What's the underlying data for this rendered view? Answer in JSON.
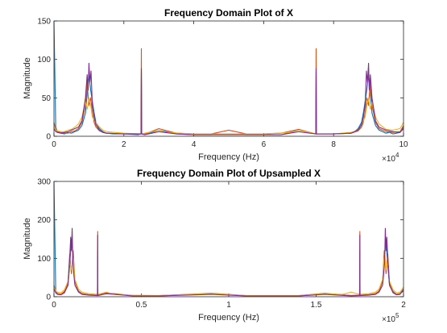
{
  "figure": {
    "background": "#ffffff",
    "series_colors": [
      "#0072BD",
      "#D95319",
      "#EDB120",
      "#7E2F8E"
    ]
  },
  "chart_data": [
    {
      "type": "line",
      "title": "Frequency Domain Plot of X",
      "xlabel": "Frequency (Hz)",
      "ylabel": "Magnitude",
      "xlim": [
        0,
        100000
      ],
      "ylim": [
        0,
        150
      ],
      "x_ticks": [
        0,
        20000,
        40000,
        60000,
        80000,
        100000
      ],
      "x_tick_labels": [
        "0",
        "2",
        "4",
        "6",
        "8",
        "10"
      ],
      "x_exponent_base": "×10",
      "x_exponent_power": "4",
      "y_ticks": [
        0,
        50,
        100,
        150
      ],
      "y_tick_labels": [
        "0",
        "50",
        "100",
        "150"
      ],
      "grid": false,
      "series": [
        {
          "color": "#0072BD",
          "x": [
            0,
            500,
            1000,
            2000,
            3000,
            4000,
            5000,
            6000,
            7000,
            8000,
            9000,
            9500,
            10000,
            10500,
            11000,
            11500,
            12000,
            13000,
            14000,
            15000,
            17000,
            20000,
            24000,
            24900,
            25000,
            25100,
            26000,
            30000,
            35000,
            40000,
            45000,
            50000,
            55000,
            60000,
            65000,
            70000,
            74900,
            75000,
            75100,
            80000,
            85000,
            86000,
            87000,
            88000,
            88500,
            89000,
            89500,
            90000,
            90500,
            91000,
            92000,
            93000,
            94000,
            95000,
            96000,
            97000,
            98000,
            99000,
            100000
          ],
          "y": [
            150,
            12,
            5,
            4,
            3,
            5,
            4,
            6,
            8,
            14,
            30,
            55,
            80,
            60,
            45,
            30,
            18,
            10,
            6,
            4,
            3,
            3,
            2,
            3,
            84,
            3,
            2,
            8,
            3,
            2,
            2,
            3,
            2,
            2,
            2,
            8,
            3,
            84,
            3,
            3,
            4,
            6,
            10,
            18,
            30,
            45,
            60,
            80,
            55,
            30,
            14,
            8,
            6,
            4,
            5,
            3,
            4,
            5,
            12
          ]
        },
        {
          "color": "#D95319",
          "x": [
            0,
            500,
            1000,
            2000,
            3000,
            4000,
            5000,
            6000,
            7000,
            8000,
            9000,
            9500,
            10000,
            10500,
            11000,
            11500,
            12000,
            13000,
            14000,
            15000,
            20000,
            24900,
            25000,
            25100,
            26000,
            30000,
            35000,
            40000,
            45000,
            50000,
            55000,
            60000,
            65000,
            70000,
            74900,
            75000,
            75100,
            80000,
            85000,
            87000,
            88000,
            88500,
            89000,
            89500,
            90000,
            90500,
            91000,
            92000,
            93000,
            95000,
            97000,
            99000,
            100000
          ],
          "y": [
            18,
            8,
            6,
            5,
            4,
            4,
            6,
            7,
            10,
            18,
            40,
            70,
            40,
            50,
            30,
            18,
            12,
            7,
            5,
            4,
            3,
            3,
            114,
            3,
            3,
            10,
            4,
            3,
            3,
            8,
            3,
            3,
            4,
            9,
            3,
            114,
            3,
            3,
            4,
            7,
            12,
            18,
            30,
            50,
            40,
            70,
            40,
            18,
            10,
            6,
            5,
            6,
            14
          ]
        },
        {
          "color": "#EDB120",
          "x": [
            0,
            500,
            1000,
            2000,
            3000,
            4000,
            5000,
            6000,
            7000,
            8000,
            9000,
            9500,
            10000,
            10500,
            11000,
            12000,
            13000,
            14000,
            15000,
            20000,
            25000,
            28000,
            30000,
            32000,
            40000,
            50000,
            60000,
            68000,
            70000,
            72000,
            75000,
            80000,
            85000,
            87000,
            88000,
            89000,
            89500,
            90000,
            90500,
            91000,
            92000,
            93000,
            95000,
            97000,
            99000,
            100000
          ],
          "y": [
            14,
            8,
            7,
            6,
            6,
            8,
            9,
            12,
            16,
            25,
            45,
            35,
            50,
            40,
            25,
            18,
            12,
            8,
            6,
            4,
            3,
            6,
            8,
            5,
            3,
            3,
            3,
            5,
            8,
            6,
            3,
            3,
            5,
            8,
            15,
            25,
            40,
            50,
            35,
            45,
            25,
            16,
            9,
            8,
            10,
            18
          ]
        },
        {
          "color": "#7E2F8E",
          "x": [
            0,
            500,
            1000,
            2000,
            3000,
            4000,
            5000,
            6000,
            7000,
            8000,
            9000,
            9500,
            9800,
            10000,
            10300,
            10600,
            11000,
            11500,
            12000,
            13000,
            14000,
            15000,
            20000,
            24900,
            25000,
            25100,
            26000,
            30000,
            35000,
            40000,
            45000,
            50000,
            55000,
            60000,
            65000,
            70000,
            74900,
            75000,
            75100,
            80000,
            85000,
            87000,
            88000,
            88500,
            89000,
            89400,
            89700,
            90000,
            90200,
            90500,
            91000,
            92000,
            93000,
            95000,
            97000,
            99000,
            100000
          ],
          "y": [
            10,
            6,
            5,
            4,
            5,
            6,
            8,
            10,
            12,
            20,
            50,
            80,
            60,
            95,
            70,
            85,
            40,
            25,
            15,
            8,
            5,
            4,
            3,
            3,
            88,
            3,
            2,
            6,
            3,
            2,
            2,
            2,
            2,
            2,
            2,
            6,
            3,
            88,
            3,
            3,
            4,
            8,
            15,
            25,
            40,
            85,
            70,
            95,
            60,
            80,
            50,
            20,
            12,
            8,
            6,
            5,
            10
          ]
        }
      ]
    },
    {
      "type": "line",
      "title": "Frequency Domain Plot of Upsampled X",
      "xlabel": "Frequency (Hz)",
      "ylabel": "Magnitude",
      "xlim": [
        0,
        200000
      ],
      "ylim": [
        0,
        300
      ],
      "x_ticks": [
        0,
        50000,
        100000,
        150000,
        200000
      ],
      "x_tick_labels": [
        "0",
        "0.5",
        "1",
        "1.5",
        "2"
      ],
      "x_exponent_base": "×10",
      "x_exponent_power": "5",
      "y_ticks": [
        0,
        100,
        200,
        300
      ],
      "y_tick_labels": [
        "0",
        "100",
        "200",
        "300"
      ],
      "grid": false,
      "series": [
        {
          "color": "#0072BD",
          "x": [
            0,
            1000,
            2000,
            4000,
            6000,
            8000,
            9000,
            10000,
            11000,
            12000,
            14000,
            16000,
            20000,
            24900,
            25000,
            25100,
            30000,
            45000,
            60000,
            90000,
            110000,
            140000,
            155000,
            170000,
            174900,
            175000,
            175100,
            180000,
            184000,
            186000,
            188000,
            189000,
            190000,
            191000,
            192000,
            194000,
            196000,
            198000,
            200000
          ],
          "y": [
            300,
            15,
            8,
            6,
            12,
            30,
            80,
            150,
            100,
            40,
            15,
            8,
            5,
            4,
            120,
            4,
            8,
            3,
            2,
            8,
            2,
            2,
            8,
            3,
            4,
            120,
            4,
            5,
            8,
            15,
            40,
            100,
            150,
            80,
            30,
            12,
            6,
            8,
            15
          ]
        },
        {
          "color": "#D95319",
          "x": [
            0,
            1000,
            2000,
            4000,
            6000,
            8000,
            9000,
            10000,
            11000,
            12000,
            14000,
            16000,
            20000,
            24900,
            25000,
            25100,
            30000,
            45000,
            60000,
            90000,
            110000,
            140000,
            155000,
            170000,
            174900,
            175000,
            175100,
            180000,
            184000,
            186000,
            188000,
            189000,
            190000,
            191000,
            192000,
            194000,
            196000,
            198000,
            200000
          ],
          "y": [
            30,
            12,
            8,
            6,
            14,
            35,
            110,
            60,
            120,
            40,
            15,
            8,
            5,
            4,
            170,
            4,
            10,
            3,
            3,
            9,
            3,
            3,
            9,
            3,
            4,
            170,
            4,
            5,
            8,
            15,
            40,
            120,
            60,
            110,
            35,
            14,
            6,
            8,
            20
          ]
        },
        {
          "color": "#EDB120",
          "x": [
            0,
            1000,
            2000,
            4000,
            6000,
            8000,
            9000,
            10000,
            11000,
            12000,
            14000,
            16000,
            20000,
            25000,
            30000,
            35000,
            45000,
            60000,
            90000,
            110000,
            140000,
            155000,
            165000,
            170000,
            175000,
            180000,
            184000,
            186000,
            188000,
            189000,
            190000,
            191000,
            192000,
            194000,
            196000,
            198000,
            200000
          ],
          "y": [
            25,
            15,
            12,
            10,
            18,
            40,
            90,
            70,
            100,
            45,
            20,
            12,
            8,
            6,
            12,
            6,
            4,
            3,
            8,
            3,
            3,
            8,
            6,
            12,
            6,
            8,
            12,
            20,
            45,
            100,
            70,
            90,
            40,
            18,
            10,
            12,
            25
          ]
        },
        {
          "color": "#7E2F8E",
          "x": [
            0,
            1000,
            2000,
            4000,
            6000,
            8000,
            9000,
            9600,
            10000,
            10400,
            10800,
            11500,
            12000,
            14000,
            16000,
            20000,
            24900,
            25000,
            25100,
            30000,
            45000,
            60000,
            90000,
            110000,
            140000,
            155000,
            170000,
            174900,
            175000,
            175100,
            180000,
            184000,
            186000,
            188000,
            188500,
            189200,
            189600,
            190000,
            190400,
            191000,
            192000,
            194000,
            196000,
            198000,
            200000
          ],
          "y": [
            20,
            10,
            6,
            5,
            10,
            30,
            100,
            155,
            120,
            178,
            90,
            50,
            30,
            12,
            6,
            4,
            3,
            160,
            3,
            8,
            2,
            2,
            6,
            2,
            2,
            6,
            2,
            3,
            160,
            3,
            4,
            6,
            12,
            30,
            50,
            90,
            178,
            120,
            155,
            100,
            30,
            10,
            5,
            6,
            20
          ]
        }
      ]
    }
  ]
}
